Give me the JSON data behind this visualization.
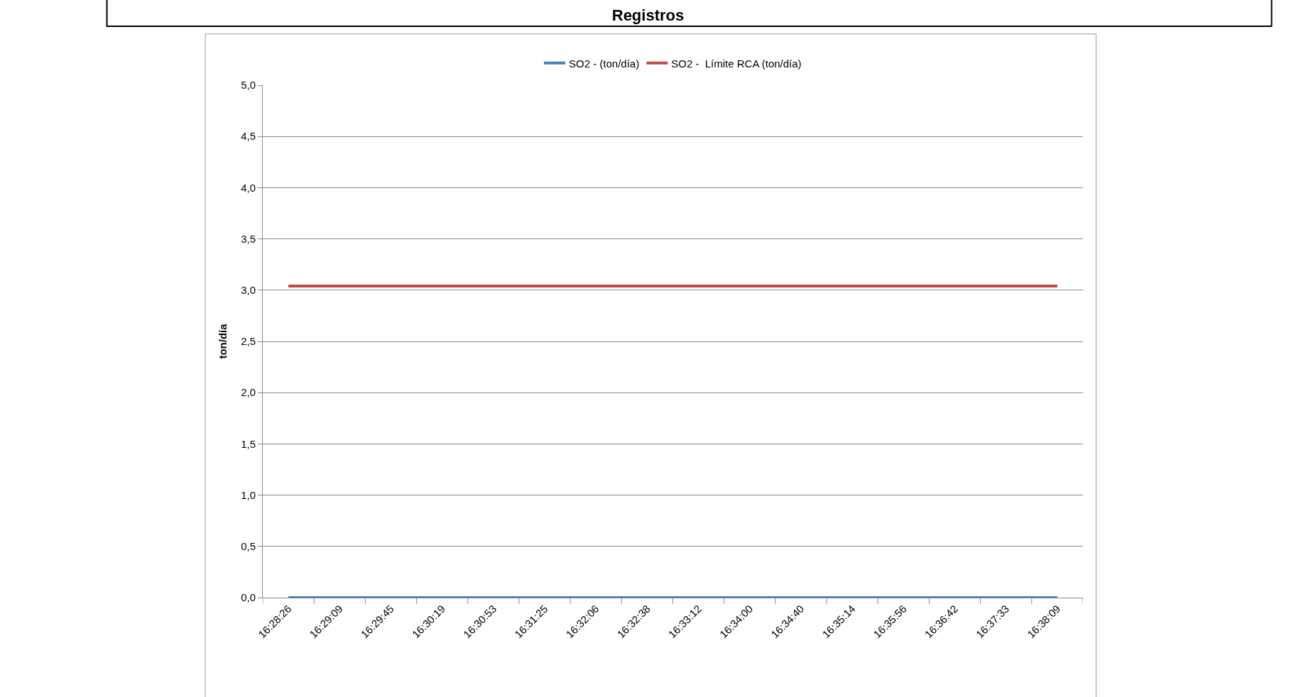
{
  "chart_data": {
    "type": "line",
    "title": "Registros",
    "ylabel": "ton/día",
    "categories": [
      "16:28:26",
      "16:29:09",
      "16:29:45",
      "16:30:19",
      "16:30:53",
      "16:31:25",
      "16:32:06",
      "16:32:38",
      "16:33:12",
      "16:34:00",
      "16:34:40",
      "16:35:14",
      "16:35:56",
      "16:36:42",
      "16:37:33",
      "16:38:09"
    ],
    "series": [
      {
        "name": "SO2 - (ton/día)",
        "color": "#4a7ebb",
        "values": [
          0,
          0,
          0,
          0,
          0,
          0,
          0,
          0,
          0,
          0,
          0,
          0,
          0,
          0,
          0,
          0
        ]
      },
      {
        "name": "SO2 -  Límite RCA (ton/día)",
        "color": "#be4b48",
        "values": [
          3.04,
          3.04,
          3.04,
          3.04,
          3.04,
          3.04,
          3.04,
          3.04,
          3.04,
          3.04,
          3.04,
          3.04,
          3.04,
          3.04,
          3.04,
          3.04
        ]
      }
    ],
    "ylim": [
      0,
      5
    ],
    "yticks": [
      {
        "value": 0,
        "label": "0,0"
      },
      {
        "value": 0.5,
        "label": "0,5"
      },
      {
        "value": 1,
        "label": "1,0"
      },
      {
        "value": 1.5,
        "label": "1,5"
      },
      {
        "value": 2,
        "label": "2,0"
      },
      {
        "value": 2.5,
        "label": "2,5"
      },
      {
        "value": 3,
        "label": "3,0"
      },
      {
        "value": 3.5,
        "label": "3,5"
      },
      {
        "value": 4,
        "label": "4,0"
      },
      {
        "value": 4.5,
        "label": "4,5"
      },
      {
        "value": 5,
        "label": "5,0"
      }
    ],
    "grid": "y",
    "legend": "top",
    "marker": "none",
    "line_style": "solid"
  }
}
